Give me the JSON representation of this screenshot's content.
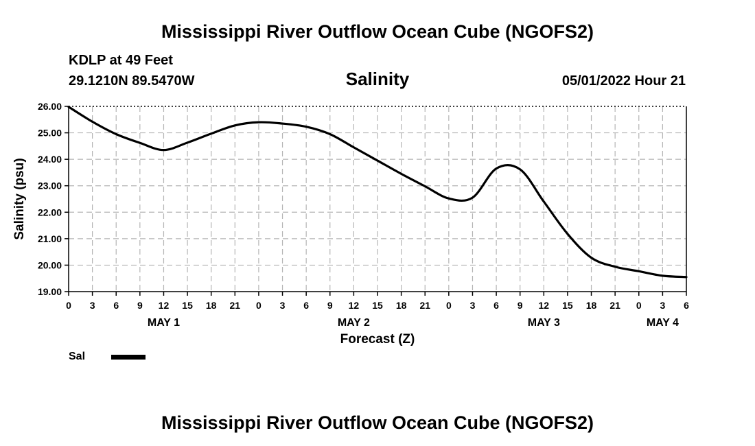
{
  "header": {
    "title": "Mississippi River Outflow Ocean Cube (NGOFS2)",
    "station": "KDLP at 49 Feet",
    "coords": "29.1210N  89.5470W",
    "subtitle": "Salinity",
    "timestamp": "05/01/2022 Hour 21"
  },
  "footer": {
    "title": "Mississippi River Outflow Ocean Cube (NGOFS2)"
  },
  "legend": {
    "label": "Sal",
    "color": "#000000"
  },
  "chart_data": {
    "type": "line",
    "title": "Salinity",
    "xlabel": "Forecast (Z)",
    "ylabel": "Salinity (psu)",
    "ylim": [
      19.0,
      26.0
    ],
    "xlim": [
      0,
      78
    ],
    "yticks": [
      "19.00",
      "20.00",
      "21.00",
      "22.00",
      "23.00",
      "24.00",
      "25.00",
      "26.00"
    ],
    "x_tick_hours": [
      0,
      3,
      6,
      9,
      12,
      15,
      18,
      21,
      24,
      27,
      30,
      33,
      36,
      39,
      42,
      45,
      48,
      51,
      54,
      57,
      60,
      63,
      66,
      69,
      72,
      75,
      78
    ],
    "x_tick_labels": [
      "0",
      "3",
      "6",
      "9",
      "12",
      "15",
      "18",
      "21",
      "0",
      "3",
      "6",
      "9",
      "12",
      "15",
      "18",
      "21",
      "0",
      "3",
      "6",
      "9",
      "12",
      "15",
      "18",
      "21",
      "0",
      "3",
      "6"
    ],
    "date_labels": [
      {
        "hour": 12,
        "label": "MAY 1"
      },
      {
        "hour": 36,
        "label": "MAY 2"
      },
      {
        "hour": 60,
        "label": "MAY 3"
      },
      {
        "hour": 75,
        "label": "MAY 4"
      }
    ],
    "grid": true,
    "series": [
      {
        "name": "Sal",
        "x": [
          0,
          3,
          6,
          9,
          12,
          15,
          18,
          21,
          24,
          27,
          30,
          33,
          36,
          39,
          42,
          45,
          48,
          51,
          54,
          57,
          60,
          63,
          66,
          69,
          72,
          75,
          78
        ],
        "values": [
          25.98,
          25.42,
          24.95,
          24.62,
          24.35,
          24.63,
          24.97,
          25.28,
          25.4,
          25.35,
          25.23,
          24.95,
          24.45,
          23.95,
          23.45,
          22.98,
          22.52,
          22.55,
          23.65,
          23.62,
          22.4,
          21.18,
          20.28,
          19.94,
          19.77,
          19.6,
          19.55
        ]
      }
    ]
  }
}
